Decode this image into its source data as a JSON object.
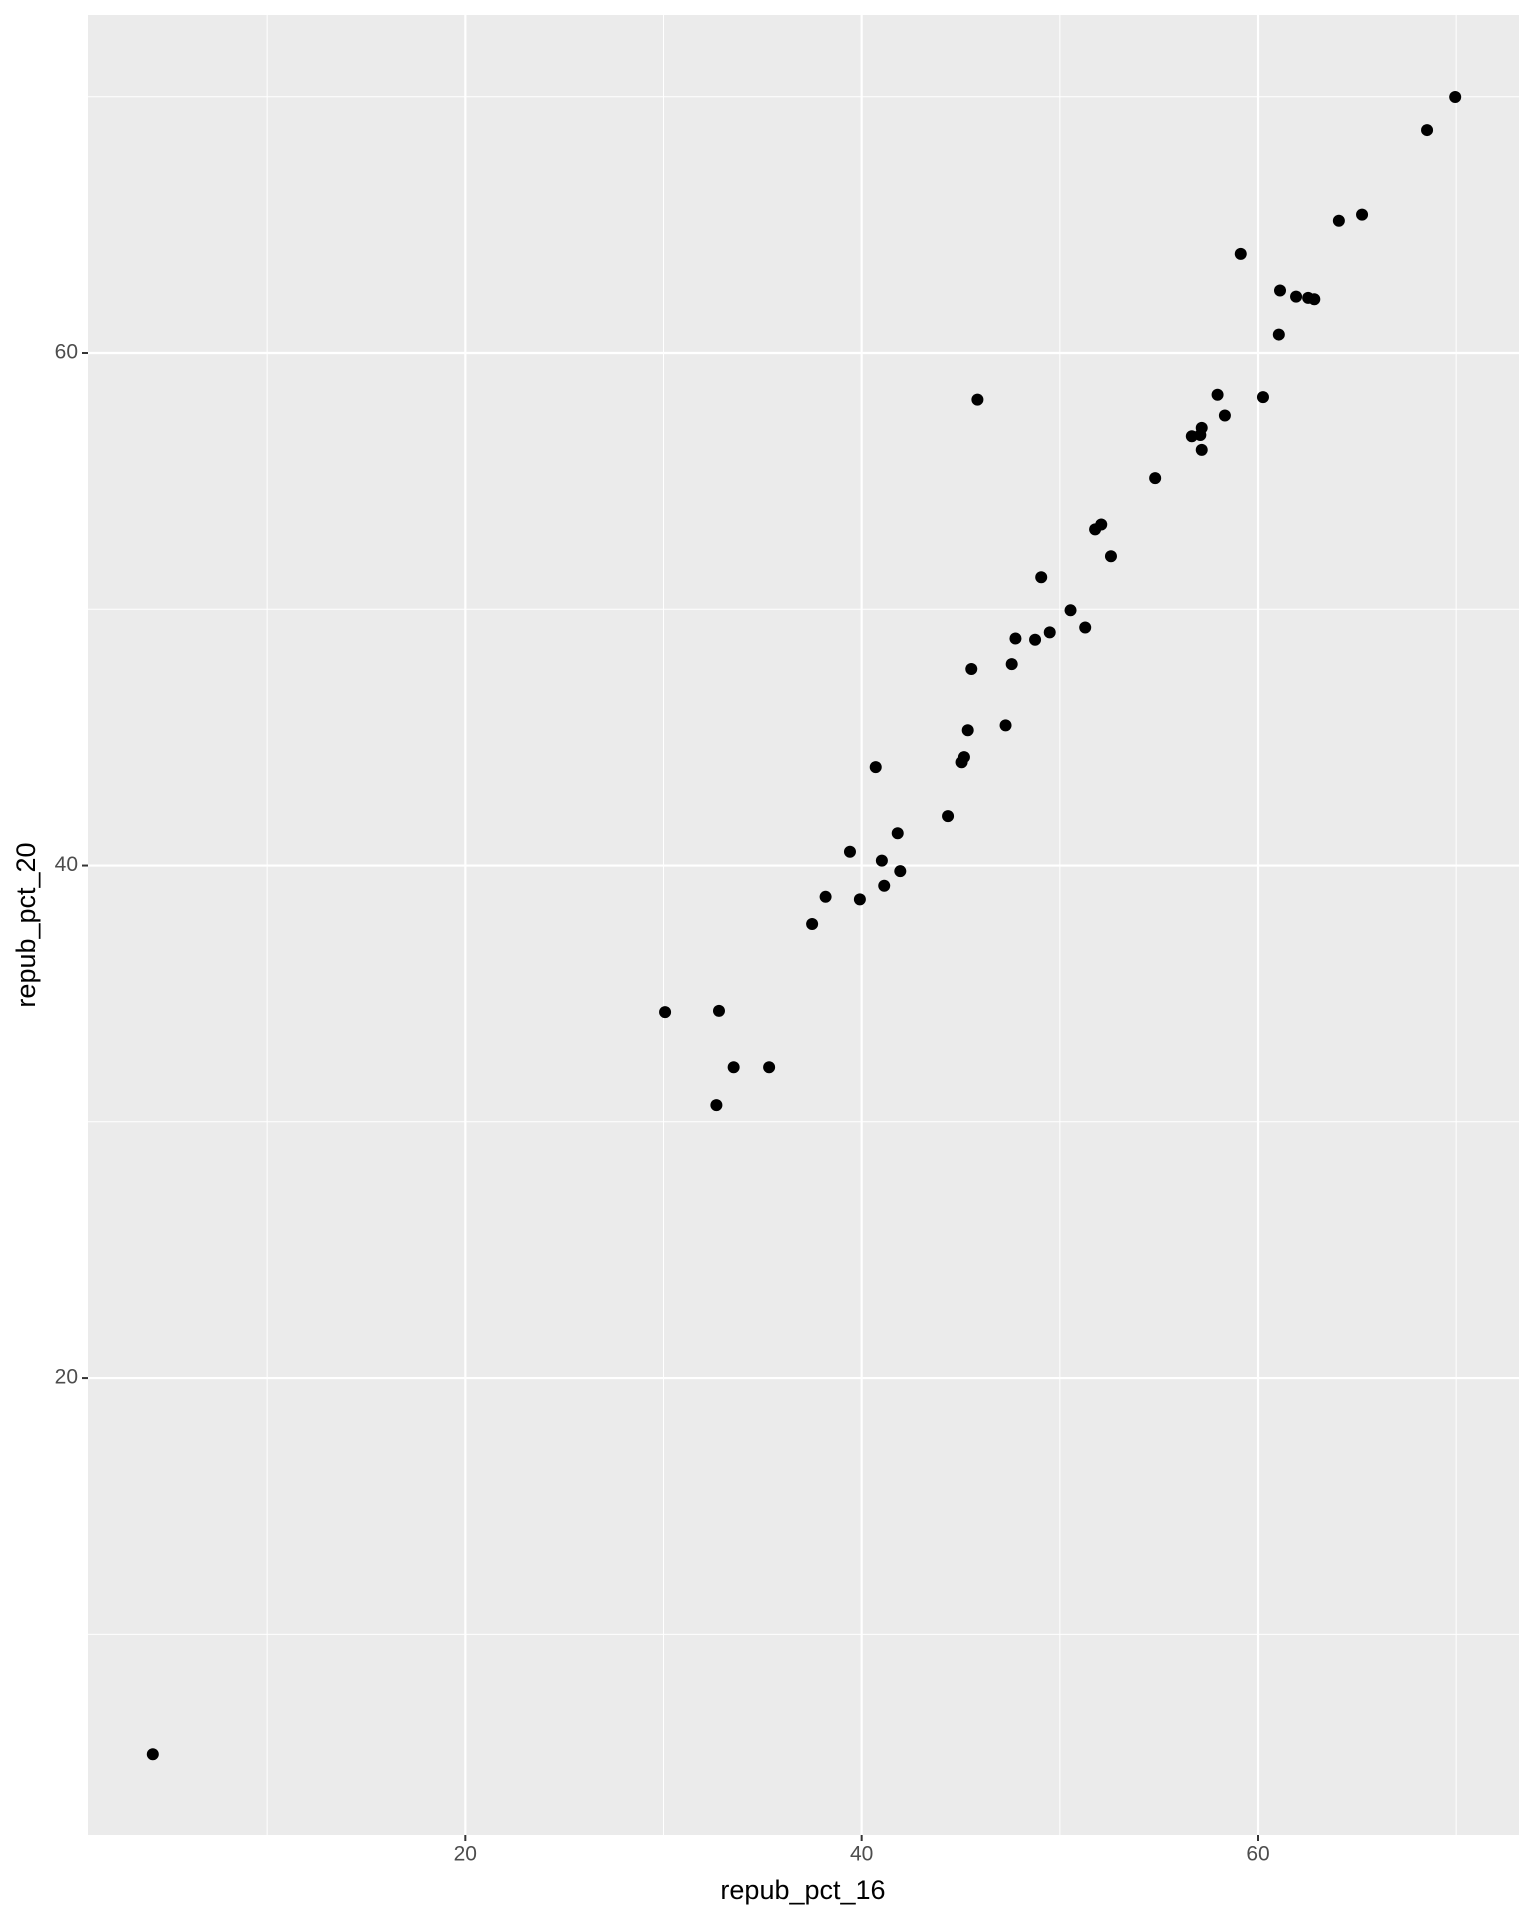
{
  "chart_data": {
    "type": "scatter",
    "x_label": "repub_pct_16",
    "y_label": "repub_pct_20",
    "x": [
      4.23,
      30.08,
      32.8,
      33.54,
      35.33,
      32.67,
      37.5,
      38.18,
      39.41,
      39.91,
      40.71,
      41.02,
      41.14,
      41.82,
      41.95,
      44.36,
      45.04,
      45.16,
      45.35,
      45.53,
      45.84,
      47.26,
      47.57,
      47.76,
      48.75,
      49.06,
      49.49,
      50.54,
      51.28,
      51.78,
      52.09,
      52.58,
      54.81,
      56.66,
      57.09,
      57.16,
      57.16,
      57.96,
      58.33,
      60.25,
      59.13,
      61.05,
      61.11,
      61.92,
      62.53,
      62.84,
      64.08,
      65.25,
      68.53,
      69.95
    ],
    "values": [
      5.32,
      34.28,
      34.33,
      32.13,
      32.13,
      30.65,
      37.72,
      38.78,
      40.54,
      38.68,
      43.84,
      40.19,
      39.21,
      41.26,
      39.78,
      41.93,
      44.03,
      44.23,
      45.28,
      47.67,
      58.18,
      45.47,
      47.86,
      48.86,
      48.81,
      51.25,
      49.1,
      49.96,
      49.29,
      53.12,
      53.31,
      52.07,
      55.12,
      56.75,
      56.8,
      57.08,
      56.22,
      58.37,
      57.56,
      58.28,
      63.87,
      60.72,
      62.44,
      62.2,
      62.15,
      62.1,
      65.16,
      65.4,
      68.7,
      69.99
    ],
    "color": "#000000",
    "xlim": [
      0.96,
      73.17
    ],
    "ylim": [
      2.17,
      73.19
    ],
    "xticks": [
      20,
      40,
      60
    ],
    "yticks": [
      20,
      40,
      60
    ],
    "xminor": [
      10,
      30,
      50,
      70
    ],
    "yminor": [
      10,
      30,
      50,
      70
    ],
    "grid": true
  }
}
